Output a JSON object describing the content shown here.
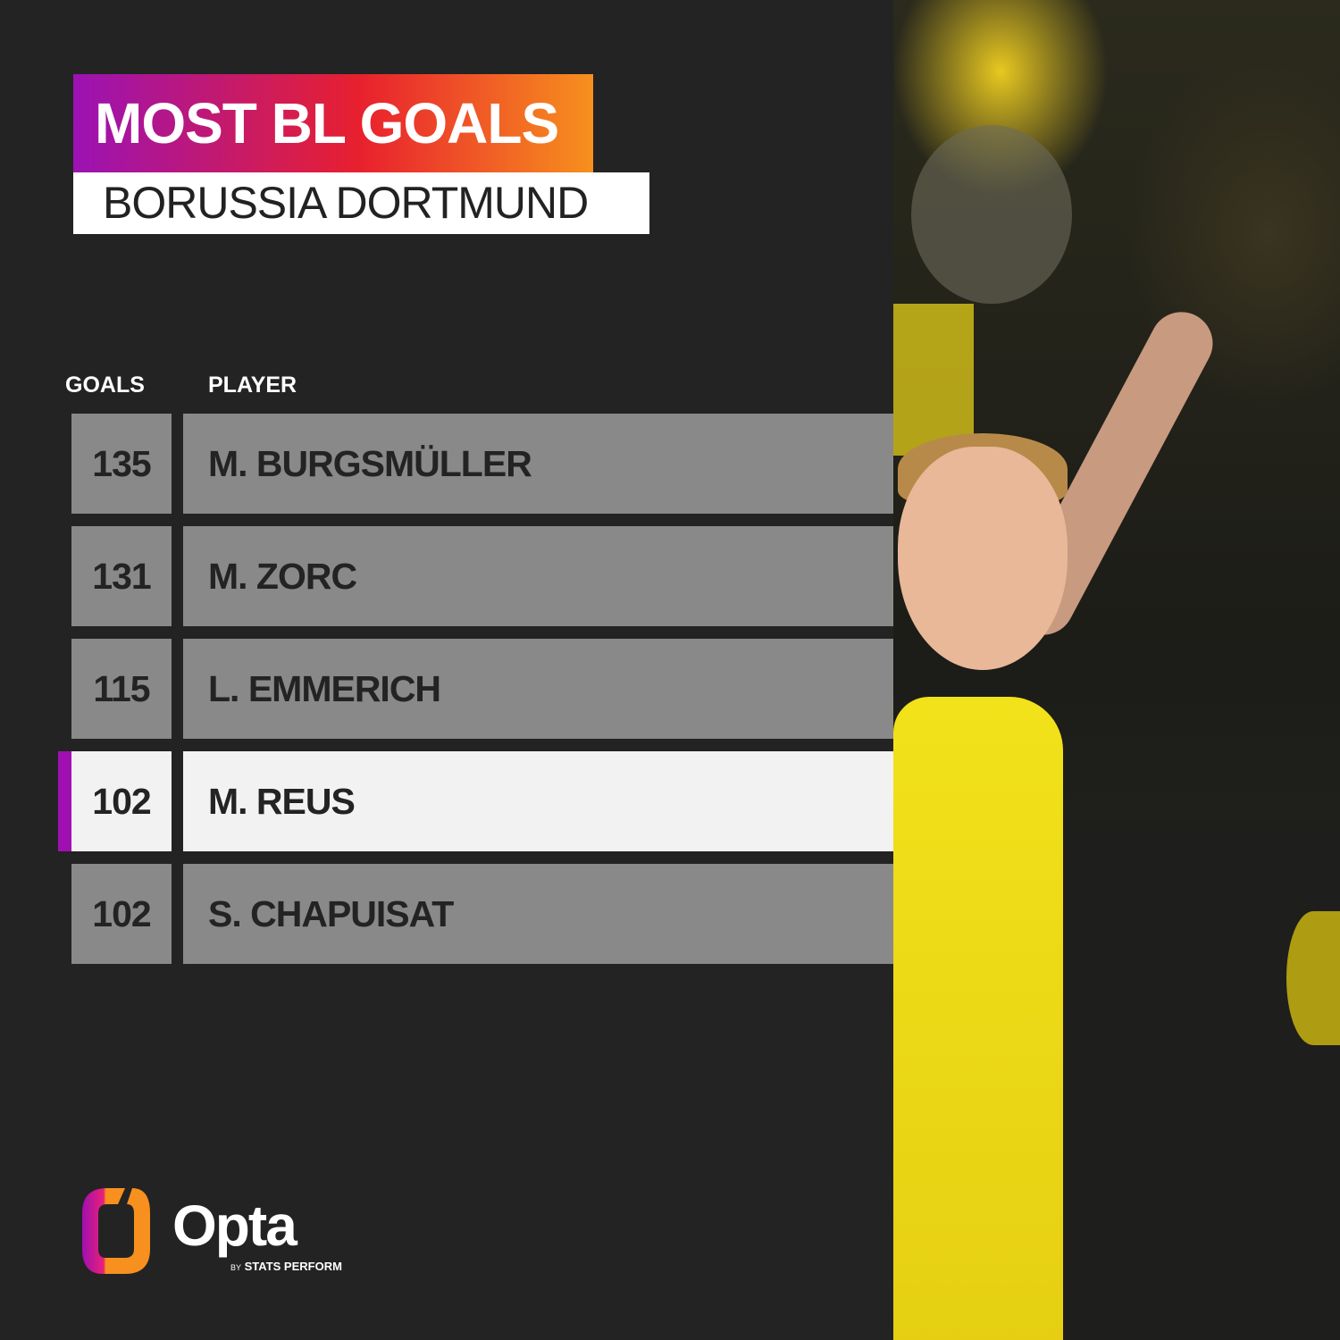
{
  "title": "MOST BL GOALS",
  "subtitle": "BORUSSIA DORTMUND",
  "columns": {
    "goals": "GOALS",
    "player": "PLAYER"
  },
  "rows": [
    {
      "goals": "135",
      "player": "M. BURGSMÜLLER",
      "highlighted": false
    },
    {
      "goals": "131",
      "player": "M. ZORC",
      "highlighted": false
    },
    {
      "goals": "115",
      "player": "L. EMMERICH",
      "highlighted": false
    },
    {
      "goals": "102",
      "player": "M. REUS",
      "highlighted": true
    },
    {
      "goals": "102",
      "player": "S. CHAPUISAT",
      "highlighted": false
    }
  ],
  "logo": {
    "name": "Opta",
    "by": "BY",
    "tagline": "STATS PERFORM"
  },
  "colors": {
    "background": "#232323",
    "row": "#898989",
    "highlight_row": "#f2f2f2",
    "accent": "#a010b0",
    "gradient": [
      "#9b12b4",
      "#e8202e",
      "#f7901e"
    ]
  }
}
